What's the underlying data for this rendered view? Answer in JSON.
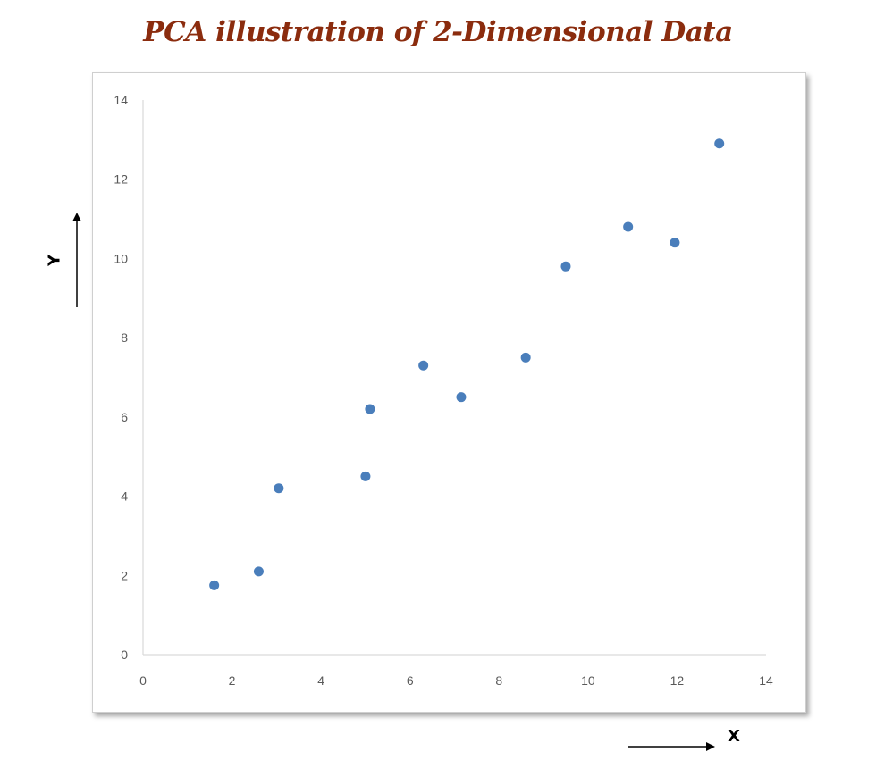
{
  "chart_data": {
    "type": "scatter",
    "title": "PCA illustration of 2-Dimensional Data",
    "xlabel": "X",
    "ylabel": "Y",
    "xlim": [
      0,
      14
    ],
    "ylim": [
      0,
      14
    ],
    "x_ticks": [
      0,
      2,
      4,
      6,
      8,
      10,
      12,
      14
    ],
    "y_ticks": [
      0,
      2,
      4,
      6,
      8,
      10,
      12,
      14
    ],
    "grid": false,
    "legend": "none",
    "series": [
      {
        "points": [
          {
            "x": 1.6,
            "y": 1.75
          },
          {
            "x": 2.6,
            "y": 2.1
          },
          {
            "x": 3.05,
            "y": 4.2
          },
          {
            "x": 5.0,
            "y": 4.5
          },
          {
            "x": 5.1,
            "y": 6.2
          },
          {
            "x": 6.3,
            "y": 7.3
          },
          {
            "x": 7.15,
            "y": 6.5
          },
          {
            "x": 8.6,
            "y": 7.5
          },
          {
            "x": 9.5,
            "y": 9.8
          },
          {
            "x": 10.9,
            "y": 10.8
          },
          {
            "x": 11.95,
            "y": 10.4
          },
          {
            "x": 12.95,
            "y": 12.9
          }
        ]
      }
    ]
  },
  "colors": {
    "title": "#8b2c0e",
    "marker": "#4a7ebb",
    "axis": "#d9d9d9"
  }
}
